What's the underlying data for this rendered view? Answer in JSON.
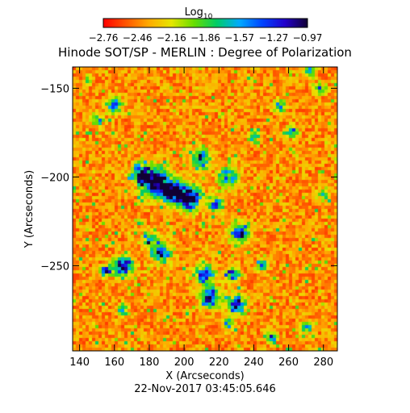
{
  "chart_data": {
    "type": "heatmap",
    "title": "Hinode SOT/SP - MERLIN : Degree of Polarization",
    "colorbar": {
      "label": "Log",
      "label_subscript": "10",
      "ticks": [
        "-2.76",
        "-2.46",
        "-2.16",
        "-1.86",
        "-1.57",
        "-1.27",
        "-0.97"
      ],
      "range": [
        -2.76,
        -0.97
      ],
      "colormap": [
        "#ff0000",
        "#ff5500",
        "#ffaa00",
        "#e6e600",
        "#66dd00",
        "#00cc66",
        "#00aaff",
        "#0044ff",
        "#2200cc",
        "#110033"
      ]
    },
    "xlabel": "X (Arcseconds)",
    "ylabel": "Y (Arcseconds)",
    "xlim": [
      136,
      288
    ],
    "ylim": [
      -298,
      -138
    ],
    "x_ticks": [
      "140",
      "160",
      "180",
      "200",
      "220",
      "240",
      "260",
      "280"
    ],
    "y_ticks": [
      "-150",
      "-200",
      "-250"
    ],
    "x_tick_values": [
      140,
      160,
      180,
      200,
      220,
      240,
      260,
      280
    ],
    "y_tick_values": [
      -150,
      -200,
      -250
    ],
    "network_regions": [
      {
        "x": 183,
        "y": -203,
        "r": 7,
        "strength": 1.0
      },
      {
        "x": 193,
        "y": -208,
        "r": 6,
        "strength": 0.9
      },
      {
        "x": 203,
        "y": -212,
        "r": 6,
        "strength": 0.9
      },
      {
        "x": 175,
        "y": -198,
        "r": 5,
        "strength": 0.7
      },
      {
        "x": 210,
        "y": -190,
        "r": 5,
        "strength": 0.6
      },
      {
        "x": 225,
        "y": -200,
        "r": 5,
        "strength": 0.6
      },
      {
        "x": 218,
        "y": -215,
        "r": 4,
        "strength": 0.6
      },
      {
        "x": 232,
        "y": -232,
        "r": 5,
        "strength": 0.7
      },
      {
        "x": 180,
        "y": -235,
        "r": 4,
        "strength": 0.5
      },
      {
        "x": 187,
        "y": -243,
        "r": 5,
        "strength": 0.7
      },
      {
        "x": 165,
        "y": -250,
        "r": 5,
        "strength": 0.8
      },
      {
        "x": 155,
        "y": -253,
        "r": 3,
        "strength": 0.7
      },
      {
        "x": 212,
        "y": -255,
        "r": 5,
        "strength": 0.7
      },
      {
        "x": 228,
        "y": -255,
        "r": 4,
        "strength": 0.6
      },
      {
        "x": 215,
        "y": -268,
        "r": 5,
        "strength": 0.8
      },
      {
        "x": 230,
        "y": -272,
        "r": 5,
        "strength": 0.8
      },
      {
        "x": 225,
        "y": -283,
        "r": 3,
        "strength": 0.5
      },
      {
        "x": 160,
        "y": -160,
        "r": 4,
        "strength": 0.6
      },
      {
        "x": 150,
        "y": -168,
        "r": 3,
        "strength": 0.5
      },
      {
        "x": 255,
        "y": -160,
        "r": 3,
        "strength": 0.6
      },
      {
        "x": 262,
        "y": -175,
        "r": 3,
        "strength": 0.5
      },
      {
        "x": 278,
        "y": -150,
        "r": 3,
        "strength": 0.5
      },
      {
        "x": 240,
        "y": -178,
        "r": 3,
        "strength": 0.5
      },
      {
        "x": 245,
        "y": -250,
        "r": 3,
        "strength": 0.5
      },
      {
        "x": 165,
        "y": -275,
        "r": 3,
        "strength": 0.5
      },
      {
        "x": 250,
        "y": -290,
        "r": 3,
        "strength": 0.5
      },
      {
        "x": 270,
        "y": -285,
        "r": 3,
        "strength": 0.5
      },
      {
        "x": 280,
        "y": -210,
        "r": 3,
        "strength": 0.4
      },
      {
        "x": 272,
        "y": -140,
        "r": 3,
        "strength": 0.5
      },
      {
        "x": 145,
        "y": -145,
        "r": 2,
        "strength": 0.4
      }
    ]
  },
  "footer": {
    "timestamp": "22-Nov-2017 03:45:05.646"
  }
}
